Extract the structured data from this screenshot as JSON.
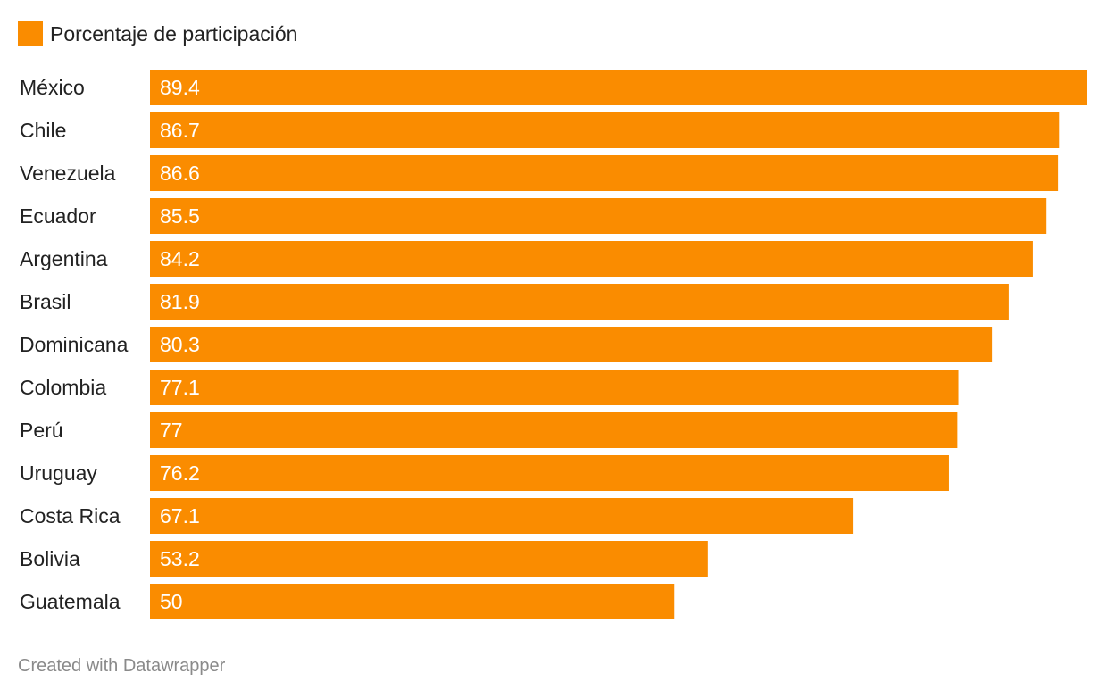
{
  "chart_data": {
    "type": "bar",
    "orientation": "horizontal",
    "categories": [
      "México",
      "Chile",
      "Venezuela",
      "Ecuador",
      "Argentina",
      "Brasil",
      "Dominicana",
      "Colombia",
      "Perú",
      "Uruguay",
      "Costa Rica",
      "Bolivia",
      "Guatemala"
    ],
    "series": [
      {
        "name": "Porcentaje de participación",
        "values": [
          89.4,
          86.7,
          86.6,
          85.5,
          84.2,
          81.9,
          80.3,
          77.1,
          77,
          76.2,
          67.1,
          53.2,
          50
        ],
        "value_labels": [
          "89.4",
          "86.7",
          "86.6",
          "85.5",
          "84.2",
          "81.9",
          "80.3",
          "77.1",
          "77",
          "76.2",
          "67.1",
          "53.2",
          "50"
        ],
        "color": "#fa8c00"
      }
    ],
    "title": "",
    "xlabel": "",
    "ylabel": "",
    "xlim": [
      0,
      89.4
    ],
    "grid": false,
    "legend": "top-left"
  },
  "legend": {
    "label": "Porcentaje de participación",
    "color": "#fa8c00"
  },
  "footer": {
    "credit": "Created with Datawrapper"
  },
  "colors": {
    "bar": "#fa8c00",
    "bar_label": "#ffffff",
    "category_label": "#222222",
    "footer": "#8a8a8a"
  }
}
